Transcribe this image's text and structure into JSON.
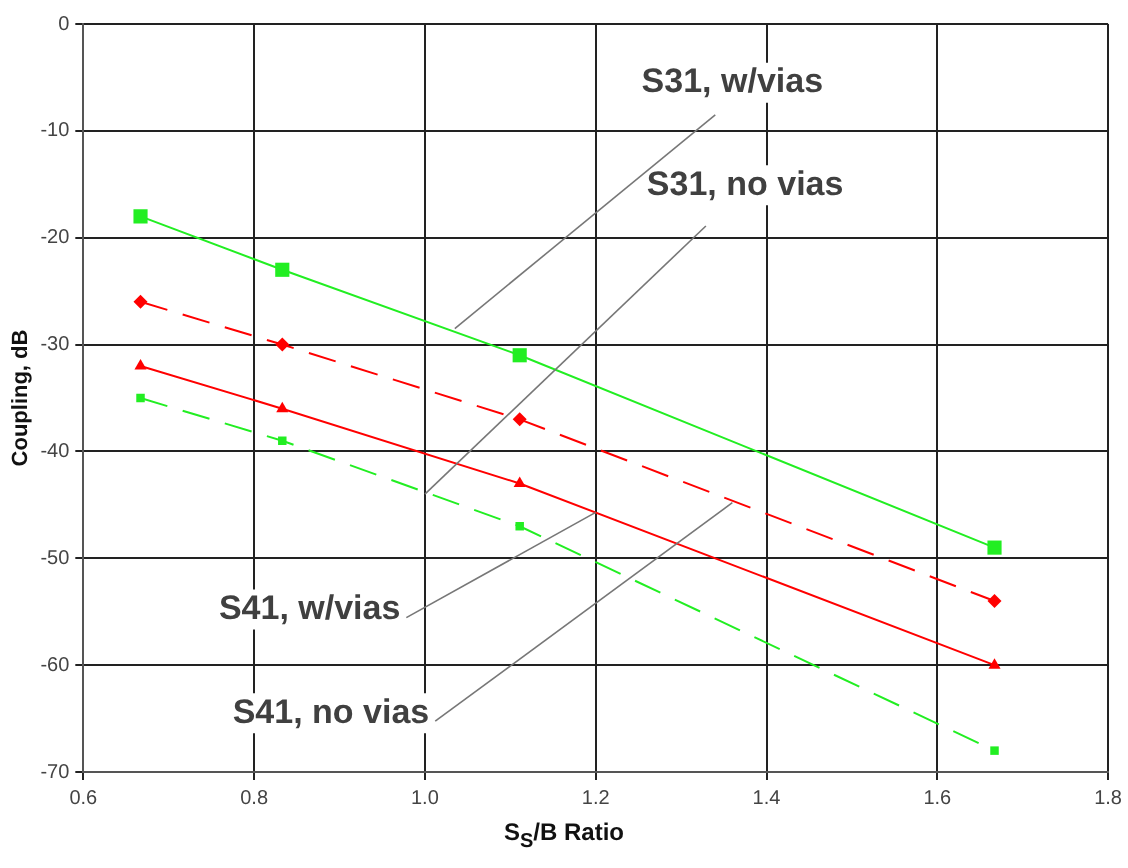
{
  "chart_data": {
    "type": "line",
    "xlabel": "S$_{S}$/B Ratio",
    "ylabel": "Coupling, dB",
    "annotations": [
      {
        "text": "S31, w/vias",
        "x": 1.035,
        "y": -28.5
      },
      {
        "text": "S31, no vias",
        "x": 1.0,
        "y": -44
      },
      {
        "text": "S41, w/vias",
        "x": 1.2,
        "y": -45.7
      },
      {
        "text": "S41, no vias",
        "x": 1.36,
        "y": -44.8
      }
    ],
    "xlim": [
      0.6,
      1.8
    ],
    "xticks": [
      0.6,
      0.8,
      {
        "value": 1,
        "label": "1.0"
      },
      1.2,
      1.4,
      1.6,
      1.8
    ],
    "ylim": [
      -70,
      0
    ],
    "yticks": [
      0,
      -10,
      -20,
      -30,
      -40,
      -50,
      -60,
      -70
    ],
    "grid": true,
    "legend": false,
    "series": [
      {
        "color": "#22ee22",
        "marker": "square",
        "line_style": "solid",
        "x": [
          0.667,
          0.833,
          1.111,
          1.667
        ],
        "values": [
          -18,
          -23,
          -31,
          -49
        ]
      },
      {
        "color": "#ff0000",
        "marker": "diamond",
        "line_style": "dashed",
        "x": [
          0.667,
          0.833,
          1.111,
          1.667
        ],
        "values": [
          -26,
          -30,
          -37,
          -54
        ]
      },
      {
        "color": "#ff0000",
        "marker": "triangle",
        "line_style": "solid",
        "x": [
          0.667,
          0.833,
          1.111,
          1.667
        ],
        "values": [
          -32,
          -36,
          -43,
          -60
        ]
      },
      {
        "color": "#22ee22",
        "marker": "square",
        "line_style": "dashed",
        "x": [
          0.667,
          0.833,
          1.111,
          1.667
        ],
        "values": [
          -35,
          -39,
          -47,
          -68
        ]
      }
    ]
  }
}
